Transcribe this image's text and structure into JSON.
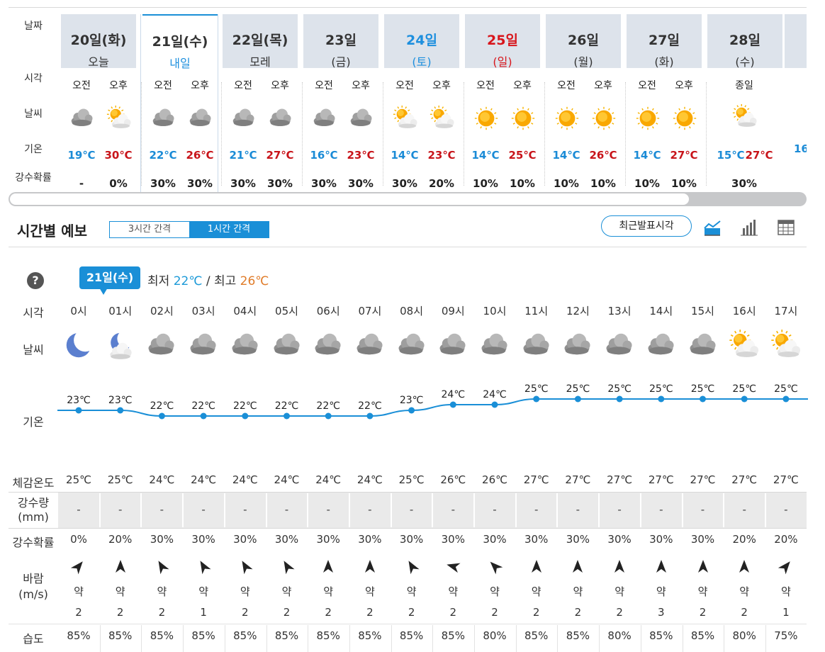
{
  "weekly": {
    "row_labels": {
      "date": "날짜",
      "time": "시각",
      "weather": "날씨",
      "temp": "기온",
      "precip_prob": "강수확률"
    },
    "days": [
      {
        "date": "20일(화)",
        "sub": "오늘",
        "kind": "normal",
        "selected": false,
        "slots": [
          {
            "label": "오전",
            "icon": "cloudy-icon",
            "temp": "19℃",
            "prob": "-"
          },
          {
            "label": "오후",
            "icon": "partly-cloudy-icon",
            "temp": "30℃",
            "prob": "0%"
          }
        ]
      },
      {
        "date": "21일(수)",
        "sub": "내일",
        "kind": "normal",
        "selected": true,
        "slots": [
          {
            "label": "오전",
            "icon": "cloudy-icon",
            "temp": "22℃",
            "prob": "30%"
          },
          {
            "label": "오후",
            "icon": "cloudy-icon",
            "temp": "26℃",
            "prob": "30%"
          }
        ]
      },
      {
        "date": "22일(목)",
        "sub": "모레",
        "kind": "normal",
        "selected": false,
        "slots": [
          {
            "label": "오전",
            "icon": "cloudy-icon",
            "temp": "21℃",
            "prob": "30%"
          },
          {
            "label": "오후",
            "icon": "cloudy-icon",
            "temp": "27℃",
            "prob": "30%"
          }
        ]
      },
      {
        "date": "23일",
        "sub": "(금)",
        "kind": "normal",
        "selected": false,
        "slots": [
          {
            "label": "오전",
            "icon": "cloudy-icon",
            "temp": "16℃",
            "prob": "30%"
          },
          {
            "label": "오후",
            "icon": "cloudy-icon",
            "temp": "23℃",
            "prob": "30%"
          }
        ]
      },
      {
        "date": "24일",
        "sub": "(토)",
        "kind": "sat",
        "selected": false,
        "slots": [
          {
            "label": "오전",
            "icon": "partly-cloudy-icon",
            "temp": "14℃",
            "prob": "30%"
          },
          {
            "label": "오후",
            "icon": "partly-cloudy-icon",
            "temp": "23℃",
            "prob": "20%"
          }
        ]
      },
      {
        "date": "25일",
        "sub": "(일)",
        "kind": "sun",
        "selected": false,
        "slots": [
          {
            "label": "오전",
            "icon": "sunny-icon",
            "temp": "14℃",
            "prob": "10%"
          },
          {
            "label": "오후",
            "icon": "sunny-icon",
            "temp": "25℃",
            "prob": "10%"
          }
        ]
      },
      {
        "date": "26일",
        "sub": "(월)",
        "kind": "normal",
        "selected": false,
        "slots": [
          {
            "label": "오전",
            "icon": "sunny-icon",
            "temp": "14℃",
            "prob": "10%"
          },
          {
            "label": "오후",
            "icon": "sunny-icon",
            "temp": "26℃",
            "prob": "10%"
          }
        ]
      },
      {
        "date": "27일",
        "sub": "(화)",
        "kind": "normal",
        "selected": false,
        "slots": [
          {
            "label": "오전",
            "icon": "sunny-icon",
            "temp": "14℃",
            "prob": "10%"
          },
          {
            "label": "오후",
            "icon": "sunny-icon",
            "temp": "27℃",
            "prob": "10%"
          }
        ]
      },
      {
        "date": "28일",
        "sub": "(수)",
        "kind": "normal",
        "selected": false,
        "allday": "종일",
        "allday_icon": "partly-cloudy-icon",
        "low": "15℃",
        "high": "27℃",
        "prob": "30%"
      }
    ],
    "partial_temp": "16"
  },
  "hourly": {
    "title": "시간별 예보",
    "tabs": [
      {
        "label": "3시간 간격",
        "active": false
      },
      {
        "label": "1시간 간격",
        "active": true
      }
    ],
    "latest_button": "최근발표시각",
    "view_icons": [
      "line-chart-icon",
      "bar-chart-icon",
      "table-icon"
    ],
    "help": "?",
    "date_bubble": "21일(수)",
    "min_label": "최저",
    "min_value": "22℃",
    "sep": "/",
    "max_label": "최고",
    "max_value": "26℃",
    "row_labels": {
      "time": "시각",
      "weather": "날씨",
      "temp": "기온",
      "feel": "체감온도",
      "rain_a": "강수량",
      "rain_b": "(mm)",
      "prob": "강수확률",
      "wind_a": "바람",
      "wind_b": "(m/s)",
      "humidity": "습도"
    },
    "hours": [
      {
        "time": "0시",
        "icon": "moon-icon",
        "temp": "23℃",
        "t": 23,
        "feel": "25℃",
        "rain": "-",
        "prob": "0%",
        "wind_dir": 40,
        "wind_str": "약",
        "wind_spd": "2",
        "hum": "85%"
      },
      {
        "time": "01시",
        "icon": "moon-cloud-icon",
        "temp": "23℃",
        "t": 23,
        "feel": "25℃",
        "rain": "-",
        "prob": "20%",
        "wind_dir": 0,
        "wind_str": "약",
        "wind_spd": "2",
        "hum": "85%"
      },
      {
        "time": "02시",
        "icon": "cloudy-icon",
        "temp": "22℃",
        "t": 22,
        "feel": "24℃",
        "rain": "-",
        "prob": "30%",
        "wind_dir": -30,
        "wind_str": "약",
        "wind_spd": "2",
        "hum": "85%"
      },
      {
        "time": "03시",
        "icon": "cloudy-icon",
        "temp": "22℃",
        "t": 22,
        "feel": "24℃",
        "rain": "-",
        "prob": "30%",
        "wind_dir": -30,
        "wind_str": "약",
        "wind_spd": "1",
        "hum": "85%"
      },
      {
        "time": "04시",
        "icon": "cloudy-icon",
        "temp": "22℃",
        "t": 22,
        "feel": "24℃",
        "rain": "-",
        "prob": "30%",
        "wind_dir": -30,
        "wind_str": "약",
        "wind_spd": "2",
        "hum": "85%"
      },
      {
        "time": "05시",
        "icon": "cloudy-icon",
        "temp": "22℃",
        "t": 22,
        "feel": "24℃",
        "rain": "-",
        "prob": "30%",
        "wind_dir": -30,
        "wind_str": "약",
        "wind_spd": "2",
        "hum": "85%"
      },
      {
        "time": "06시",
        "icon": "cloudy-icon",
        "temp": "22℃",
        "t": 22,
        "feel": "24℃",
        "rain": "-",
        "prob": "30%",
        "wind_dir": 0,
        "wind_str": "약",
        "wind_spd": "2",
        "hum": "85%"
      },
      {
        "time": "07시",
        "icon": "cloudy-icon",
        "temp": "22℃",
        "t": 22,
        "feel": "24℃",
        "rain": "-",
        "prob": "30%",
        "wind_dir": 0,
        "wind_str": "약",
        "wind_spd": "2",
        "hum": "85%"
      },
      {
        "time": "08시",
        "icon": "cloudy-icon",
        "temp": "23℃",
        "t": 23,
        "feel": "25℃",
        "rain": "-",
        "prob": "30%",
        "wind_dir": -30,
        "wind_str": "약",
        "wind_spd": "2",
        "hum": "85%"
      },
      {
        "time": "09시",
        "icon": "cloudy-icon",
        "temp": "24℃",
        "t": 24,
        "feel": "26℃",
        "rain": "-",
        "prob": "30%",
        "wind_dir": -75,
        "wind_str": "약",
        "wind_spd": "2",
        "hum": "85%"
      },
      {
        "time": "10시",
        "icon": "cloudy-icon",
        "temp": "24℃",
        "t": 24,
        "feel": "26℃",
        "rain": "-",
        "prob": "30%",
        "wind_dir": -45,
        "wind_str": "약",
        "wind_spd": "2",
        "hum": "80%"
      },
      {
        "time": "11시",
        "icon": "cloudy-icon",
        "temp": "25℃",
        "t": 25,
        "feel": "27℃",
        "rain": "-",
        "prob": "30%",
        "wind_dir": 0,
        "wind_str": "약",
        "wind_spd": "2",
        "hum": "85%"
      },
      {
        "time": "12시",
        "icon": "cloudy-icon",
        "temp": "25℃",
        "t": 25,
        "feel": "27℃",
        "rain": "-",
        "prob": "30%",
        "wind_dir": 0,
        "wind_str": "약",
        "wind_spd": "2",
        "hum": "85%"
      },
      {
        "time": "13시",
        "icon": "cloudy-icon",
        "temp": "25℃",
        "t": 25,
        "feel": "27℃",
        "rain": "-",
        "prob": "30%",
        "wind_dir": 0,
        "wind_str": "약",
        "wind_spd": "2",
        "hum": "80%"
      },
      {
        "time": "14시",
        "icon": "cloudy-icon",
        "temp": "25℃",
        "t": 25,
        "feel": "27℃",
        "rain": "-",
        "prob": "30%",
        "wind_dir": 0,
        "wind_str": "약",
        "wind_spd": "3",
        "hum": "85%"
      },
      {
        "time": "15시",
        "icon": "cloudy-icon",
        "temp": "25℃",
        "t": 25,
        "feel": "27℃",
        "rain": "-",
        "prob": "30%",
        "wind_dir": 0,
        "wind_str": "약",
        "wind_spd": "2",
        "hum": "85%"
      },
      {
        "time": "16시",
        "icon": "partly-cloudy-icon",
        "temp": "25℃",
        "t": 25,
        "feel": "27℃",
        "rain": "-",
        "prob": "20%",
        "wind_dir": 0,
        "wind_str": "약",
        "wind_spd": "2",
        "hum": "80%"
      },
      {
        "time": "17시",
        "icon": "partly-cloudy-icon",
        "temp": "25℃",
        "t": 25,
        "feel": "27℃",
        "rain": "-",
        "prob": "20%",
        "wind_dir": 40,
        "wind_str": "약",
        "wind_spd": "1",
        "hum": "75%"
      }
    ]
  },
  "colors": {
    "accent": "#1a8fd7",
    "low_temp": "#1b8bd6",
    "high_temp": "#c8141a",
    "sun": "#f7a800",
    "cloud": "#9a9a9a",
    "moon": "#5b7fcf"
  }
}
